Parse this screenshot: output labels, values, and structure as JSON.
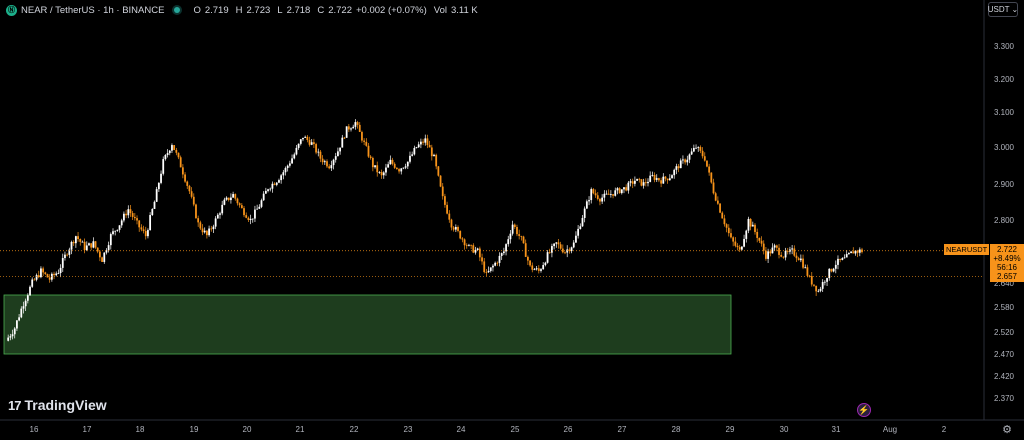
{
  "header": {
    "symbol": "NEAR / TetherUS · 1h · BINANCE",
    "o_key": "O",
    "o_val": "2.719",
    "h_key": "H",
    "h_val": "2.723",
    "l_key": "L",
    "l_val": "2.718",
    "c_key": "C",
    "c_val": "2.722",
    "change": "+0.002 (+0.07%)",
    "vol_key": "Vol",
    "vol_val": "3.11 K"
  },
  "currency_button": {
    "label": "USDT",
    "icon": "chevron-down-icon"
  },
  "price_tag": {
    "symbol_label": "NEARUSDT",
    "price": "2.722",
    "change_pct": "+8.49%",
    "countdown": "56:16",
    "prev_label": "2.657"
  },
  "branding": {
    "logo": "TradingView",
    "mark": "17"
  },
  "icons": {
    "bell": "lightning-alert-icon",
    "settings": "gear-icon",
    "symbol": "near-coin-icon"
  },
  "colors": {
    "up": "#ffffff",
    "down": "#f7931a",
    "zone_fill": "#1e3d1e",
    "zone_border": "#4caf50",
    "price_line": "#f7931a",
    "axis_text": "#b2b5be",
    "grid": "#000000"
  },
  "chart_data": {
    "type": "candlestick",
    "timeframe": "1h",
    "y_ticks": [
      "3.300",
      "3.200",
      "3.100",
      "3.000",
      "2.900",
      "2.800",
      "2.640",
      "2.580",
      "2.520",
      "2.470",
      "2.420",
      "2.370"
    ],
    "x_ticks": [
      "16",
      "17",
      "18",
      "19",
      "20",
      "21",
      "22",
      "23",
      "24",
      "25",
      "26",
      "27",
      "28",
      "29",
      "30",
      "31",
      "Aug",
      "2"
    ],
    "demand_zone": {
      "y_from": 2.47,
      "y_to": 2.61,
      "x_from": "16",
      "x_to": "29"
    },
    "last_price": 2.722,
    "prev_reference": 2.657,
    "close_path": [
      [
        0,
        2.5
      ],
      [
        4,
        2.53
      ],
      [
        8,
        2.59
      ],
      [
        12,
        2.64
      ],
      [
        16,
        2.67
      ],
      [
        20,
        2.65
      ],
      [
        24,
        2.67
      ],
      [
        28,
        2.72
      ],
      [
        32,
        2.76
      ],
      [
        36,
        2.73
      ],
      [
        40,
        2.74
      ],
      [
        44,
        2.7
      ],
      [
        48,
        2.76
      ],
      [
        52,
        2.79
      ],
      [
        56,
        2.83
      ],
      [
        60,
        2.79
      ],
      [
        64,
        2.76
      ],
      [
        68,
        2.85
      ],
      [
        72,
        2.96
      ],
      [
        76,
        3.01
      ],
      [
        80,
        2.95
      ],
      [
        84,
        2.88
      ],
      [
        88,
        2.79
      ],
      [
        92,
        2.76
      ],
      [
        96,
        2.8
      ],
      [
        100,
        2.85
      ],
      [
        104,
        2.87
      ],
      [
        108,
        2.83
      ],
      [
        112,
        2.8
      ],
      [
        116,
        2.84
      ],
      [
        120,
        2.89
      ],
      [
        124,
        2.91
      ],
      [
        128,
        2.94
      ],
      [
        132,
        2.98
      ],
      [
        136,
        3.03
      ],
      [
        140,
        3.01
      ],
      [
        144,
        2.97
      ],
      [
        148,
        2.95
      ],
      [
        152,
        2.99
      ],
      [
        156,
        3.05
      ],
      [
        160,
        3.07
      ],
      [
        164,
        3.01
      ],
      [
        168,
        2.95
      ],
      [
        172,
        2.92
      ],
      [
        176,
        2.96
      ],
      [
        180,
        2.94
      ],
      [
        184,
        2.96
      ],
      [
        188,
        3.0
      ],
      [
        192,
        3.02
      ],
      [
        196,
        2.97
      ],
      [
        200,
        2.86
      ],
      [
        204,
        2.79
      ],
      [
        208,
        2.76
      ],
      [
        212,
        2.73
      ],
      [
        216,
        2.72
      ],
      [
        220,
        2.66
      ],
      [
        224,
        2.69
      ],
      [
        228,
        2.72
      ],
      [
        232,
        2.79
      ],
      [
        236,
        2.75
      ],
      [
        240,
        2.68
      ],
      [
        244,
        2.67
      ],
      [
        248,
        2.71
      ],
      [
        252,
        2.74
      ],
      [
        256,
        2.72
      ],
      [
        260,
        2.74
      ],
      [
        264,
        2.81
      ],
      [
        268,
        2.88
      ],
      [
        272,
        2.86
      ],
      [
        276,
        2.87
      ],
      [
        280,
        2.88
      ],
      [
        284,
        2.89
      ],
      [
        288,
        2.91
      ],
      [
        292,
        2.9
      ],
      [
        296,
        2.92
      ],
      [
        300,
        2.91
      ],
      [
        304,
        2.92
      ],
      [
        308,
        2.95
      ],
      [
        312,
        2.97
      ],
      [
        316,
        3.0
      ],
      [
        320,
        2.97
      ],
      [
        324,
        2.88
      ],
      [
        328,
        2.81
      ],
      [
        332,
        2.75
      ],
      [
        336,
        2.72
      ],
      [
        340,
        2.8
      ],
      [
        344,
        2.76
      ],
      [
        348,
        2.71
      ],
      [
        352,
        2.73
      ],
      [
        356,
        2.71
      ],
      [
        360,
        2.72
      ],
      [
        364,
        2.7
      ],
      [
        368,
        2.65
      ],
      [
        372,
        2.62
      ],
      [
        376,
        2.66
      ],
      [
        380,
        2.69
      ],
      [
        384,
        2.7
      ],
      [
        388,
        2.72
      ],
      [
        392,
        2.722
      ]
    ]
  }
}
